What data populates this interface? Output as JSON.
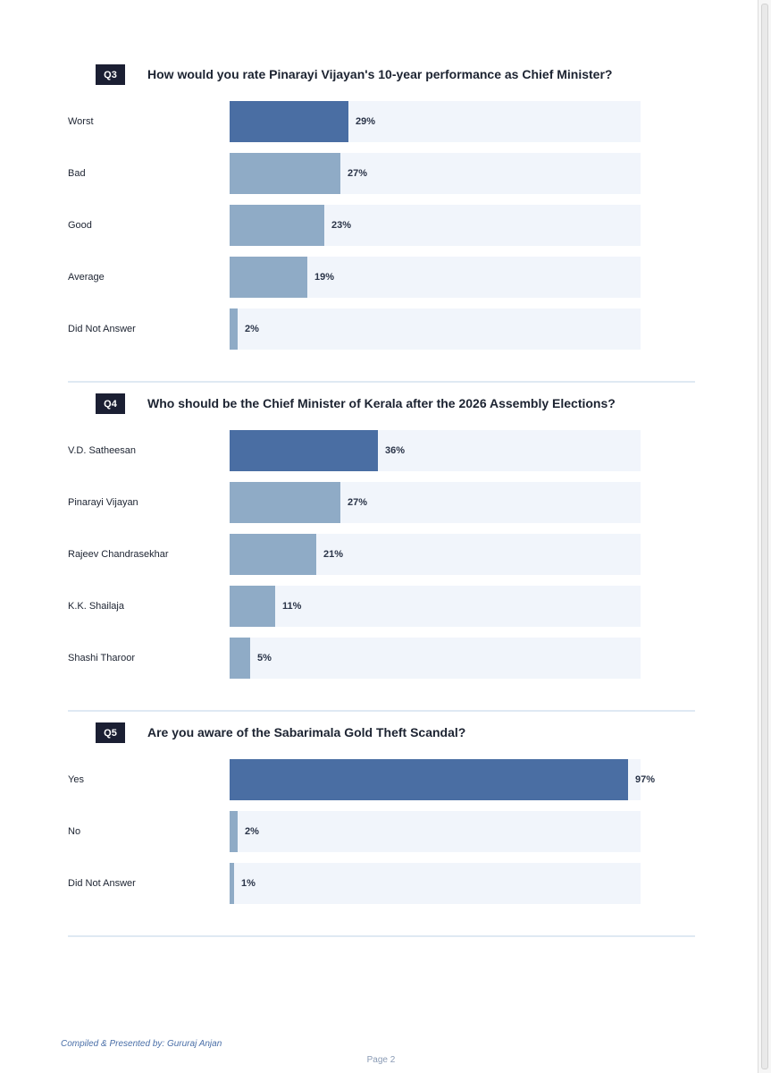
{
  "chart_data": [
    {
      "type": "bar",
      "orientation": "horizontal",
      "badge": "Q3",
      "title": "How would you rate Pinarayi Vijayan's 10-year performance as Chief Minister?",
      "categories": [
        "Worst",
        "Bad",
        "Good",
        "Average",
        "Did Not Answer"
      ],
      "values": [
        29,
        27,
        23,
        19,
        2
      ],
      "value_labels": [
        "29%",
        "27%",
        "23%",
        "19%",
        "2%"
      ],
      "xlim": [
        0,
        100
      ],
      "unit": "%"
    },
    {
      "type": "bar",
      "orientation": "horizontal",
      "badge": "Q4",
      "title": "Who should be the Chief Minister of Kerala after the 2026 Assembly Elections?",
      "categories": [
        "V.D. Satheesan",
        "Pinarayi Vijayan",
        "Rajeev Chandrasekhar",
        "K.K. Shailaja",
        "Shashi Tharoor"
      ],
      "values": [
        36,
        27,
        21,
        11,
        5
      ],
      "value_labels": [
        "36%",
        "27%",
        "21%",
        "11%",
        "5%"
      ],
      "xlim": [
        0,
        100
      ],
      "unit": "%"
    },
    {
      "type": "bar",
      "orientation": "horizontal",
      "badge": "Q5",
      "title": "Are you aware of the Sabarimala Gold Theft Scandal?",
      "categories": [
        "Yes",
        "No",
        "Did Not Answer"
      ],
      "values": [
        97,
        2,
        1
      ],
      "value_labels": [
        "97%",
        "2%",
        "1%"
      ],
      "xlim": [
        0,
        100
      ],
      "unit": "%"
    }
  ],
  "colors": {
    "highlight_bar": "#4a6ea3",
    "bar": "#8fabc6",
    "track": "#f1f5fb",
    "badge": "#1b1f33"
  },
  "footer": {
    "credit": "Compiled & Presented by: Gururaj Anjan",
    "page": "Page 2"
  }
}
